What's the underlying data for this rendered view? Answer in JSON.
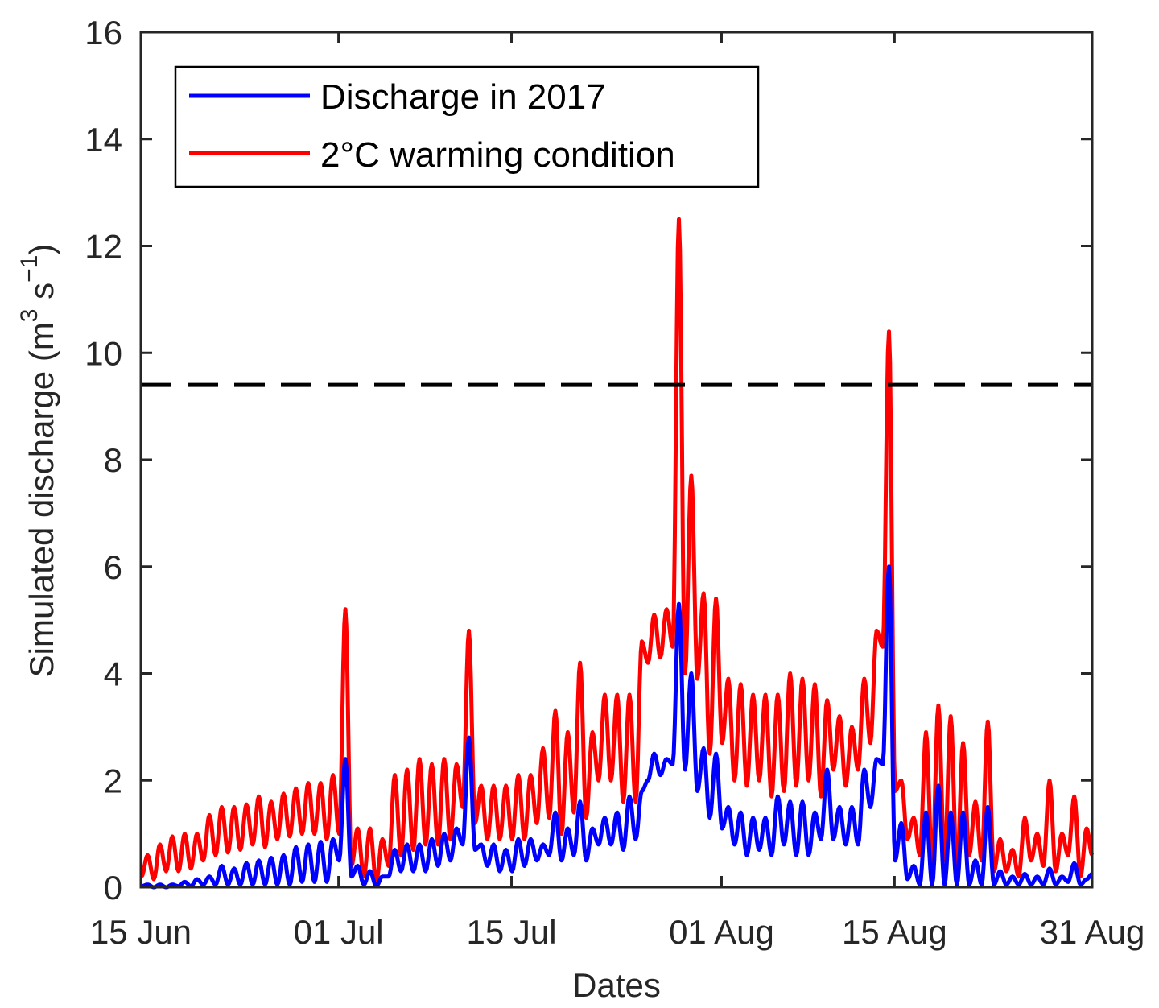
{
  "chart_data": {
    "type": "line",
    "title": "",
    "xlabel": "Dates",
    "ylabel": "Simulated discharge (m",
    "ylabel_unit_sup1": "3",
    "ylabel_unit_mid": " s",
    "ylabel_unit_sup2": "−1",
    "ylabel_close": ")",
    "xlim": [
      "2017-06-15",
      "2017-08-31"
    ],
    "ylim": [
      0,
      16
    ],
    "yticks": [
      "0",
      "2",
      "4",
      "6",
      "8",
      "10",
      "12",
      "14",
      "16"
    ],
    "xticks": [
      {
        "date": "2017-06-15",
        "label": "15 Jun"
      },
      {
        "date": "2017-07-01",
        "label": "01 Jul"
      },
      {
        "date": "2017-07-15",
        "label": "15 Jul"
      },
      {
        "date": "2017-08-01",
        "label": "01 Aug"
      },
      {
        "date": "2017-08-15",
        "label": "15 Aug"
      },
      {
        "date": "2017-08-31",
        "label": "31 Aug"
      }
    ],
    "grid": false,
    "legend_placement": "top-left",
    "threshold_line": {
      "value": 9.4,
      "style": "dashed",
      "color": "#000000"
    },
    "series_resolution": "daily maxima/minima of diurnal cycle, starting 2017-06-15",
    "series": [
      {
        "name": "Discharge in 2017",
        "color": "#0000ff",
        "daily_max": [
          0.05,
          0.05,
          0.05,
          0.1,
          0.15,
          0.2,
          0.4,
          0.35,
          0.45,
          0.5,
          0.55,
          0.6,
          0.75,
          0.8,
          0.85,
          0.9,
          2.4,
          0.4,
          0.3,
          0.2,
          0.7,
          0.8,
          0.8,
          0.9,
          1.0,
          1.1,
          2.8,
          0.8,
          0.8,
          0.7,
          0.9,
          0.9,
          0.8,
          1.4,
          1.1,
          1.6,
          1.1,
          1.3,
          1.4,
          1.7,
          1.8,
          2.5,
          2.4,
          5.3,
          4.0,
          2.6,
          2.5,
          1.5,
          1.4,
          1.3,
          1.3,
          1.7,
          1.6,
          1.6,
          1.4,
          2.2,
          1.5,
          1.5,
          2.2,
          2.4,
          6.0,
          1.2,
          0.4,
          1.4,
          1.9,
          1.4,
          1.4,
          0.5,
          1.5,
          0.3,
          0.2,
          0.25,
          0.2,
          0.35,
          0.2,
          0.45,
          0.15
        ],
        "daily_min": [
          0.02,
          0.0,
          0.0,
          0.02,
          0.02,
          0.05,
          0.05,
          0.05,
          0.05,
          0.05,
          0.05,
          0.05,
          0.05,
          0.1,
          0.1,
          0.1,
          0.5,
          0.2,
          0.05,
          0.02,
          0.2,
          0.3,
          0.3,
          0.3,
          0.4,
          0.5,
          0.8,
          0.7,
          0.4,
          0.3,
          0.3,
          0.4,
          0.5,
          0.6,
          0.5,
          0.6,
          0.5,
          0.8,
          0.8,
          0.7,
          0.9,
          2.0,
          2.1,
          2.3,
          2.2,
          1.8,
          1.3,
          1.1,
          0.8,
          0.6,
          0.7,
          0.6,
          0.8,
          0.6,
          0.6,
          0.9,
          0.9,
          0.8,
          0.8,
          1.5,
          2.3,
          0.5,
          0.15,
          0.05,
          0.05,
          0.05,
          0.05,
          0.05,
          0.05,
          0.05,
          0.05,
          0.05,
          0.05,
          0.05,
          0.05,
          0.1,
          0.05
        ],
        "end_value": 0.25
      },
      {
        "name": "2°C warming condition",
        "color": "#ff0000",
        "daily_max": [
          0.6,
          0.8,
          0.95,
          1.0,
          1.0,
          1.35,
          1.5,
          1.5,
          1.55,
          1.7,
          1.6,
          1.75,
          1.85,
          1.95,
          1.95,
          2.1,
          5.2,
          1.1,
          1.1,
          0.9,
          2.1,
          2.2,
          2.4,
          2.3,
          2.4,
          2.3,
          4.8,
          1.9,
          1.9,
          1.9,
          2.1,
          2.1,
          2.6,
          3.3,
          2.9,
          4.2,
          2.9,
          3.6,
          3.6,
          3.6,
          4.6,
          5.1,
          5.2,
          12.5,
          7.7,
          5.5,
          5.4,
          3.9,
          3.8,
          3.6,
          3.6,
          3.6,
          4.0,
          3.9,
          3.8,
          3.5,
          3.2,
          3.0,
          3.9,
          4.8,
          10.4,
          2.0,
          1.3,
          2.9,
          3.4,
          3.2,
          2.7,
          1.6,
          3.1,
          0.9,
          0.7,
          1.3,
          1.0,
          2.0,
          1.0,
          1.7,
          1.1
        ],
        "daily_min": [
          0.2,
          0.15,
          0.3,
          0.3,
          0.35,
          0.5,
          0.6,
          0.65,
          0.7,
          0.8,
          0.75,
          0.9,
          0.95,
          1.0,
          1.0,
          0.9,
          1.0,
          0.4,
          0.2,
          0.1,
          0.4,
          0.6,
          0.7,
          0.8,
          0.8,
          0.9,
          1.5,
          1.2,
          0.9,
          0.9,
          0.9,
          0.9,
          1.2,
          1.3,
          1.0,
          1.4,
          1.3,
          2.0,
          2.0,
          1.6,
          1.6,
          4.2,
          4.3,
          4.5,
          4.0,
          3.9,
          2.5,
          2.7,
          2.0,
          1.9,
          2.0,
          1.7,
          1.8,
          1.9,
          2.0,
          1.7,
          2.2,
          1.9,
          2.2,
          2.7,
          4.5,
          1.8,
          0.9,
          0.6,
          0.4,
          0.5,
          0.3,
          0.6,
          0.5,
          0.3,
          0.3,
          0.2,
          0.5,
          0.4,
          0.3,
          0.6,
          0.2
        ],
        "end_value": 0.6
      }
    ]
  }
}
